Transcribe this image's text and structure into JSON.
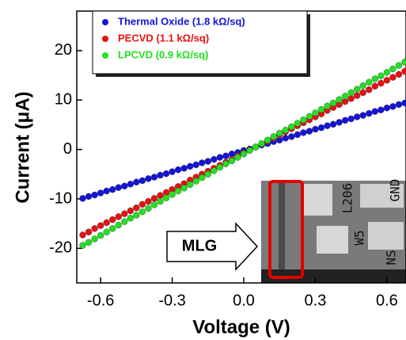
{
  "chart_data": {
    "type": "scatter",
    "xlabel": "Voltage (V)",
    "ylabel": "Current (μA)",
    "xlim": [
      -0.7,
      0.68
    ],
    "ylim": [
      -27,
      28
    ],
    "xticks": [
      -0.6,
      -0.3,
      {
        "value": 0,
        "label": "0.0"
      },
      0.3,
      0.6
    ],
    "yticks": [
      -20,
      -10,
      0,
      10,
      20
    ],
    "legend": "upper left",
    "x": [
      -0.675,
      -0.65,
      -0.625,
      -0.6,
      -0.575,
      -0.55,
      -0.525,
      -0.5,
      -0.475,
      -0.45,
      -0.425,
      -0.4,
      -0.375,
      -0.35,
      -0.325,
      -0.3,
      -0.275,
      -0.25,
      -0.225,
      -0.2,
      -0.175,
      -0.15,
      -0.125,
      -0.1,
      -0.075,
      -0.05,
      -0.025,
      0,
      0.025,
      0.05,
      0.075,
      0.1,
      0.125,
      0.15,
      0.175,
      0.2,
      0.225,
      0.25,
      0.275,
      0.3,
      0.325,
      0.35,
      0.375,
      0.4,
      0.425,
      0.45,
      0.475,
      0.5,
      0.525,
      0.55,
      0.575,
      0.6,
      0.625,
      0.65,
      0.675
    ],
    "series": [
      {
        "name": "Thermal Oxide (1.8 kΩ/sq)",
        "color": "#1414d8",
        "values": [
          -9.9,
          -9.5,
          -9.2,
          -8.8,
          -8.4,
          -8.1,
          -7.7,
          -7.4,
          -7.0,
          -6.6,
          -6.3,
          -5.9,
          -5.6,
          -5.2,
          -4.9,
          -4.5,
          -4.1,
          -3.8,
          -3.4,
          -3.1,
          -2.7,
          -2.4,
          -2.0,
          -1.6,
          -1.3,
          -0.9,
          -0.6,
          -0.2,
          0.1,
          0.5,
          0.9,
          1.2,
          1.6,
          1.9,
          2.3,
          2.6,
          3.0,
          3.4,
          3.7,
          4.1,
          4.4,
          4.8,
          5.1,
          5.5,
          5.9,
          6.2,
          6.6,
          6.9,
          7.3,
          7.7,
          8.0,
          8.4,
          8.7,
          9.1,
          9.4
        ]
      },
      {
        "name": "PECVD (1.1 kΩ/sq)",
        "color": "#e81010",
        "values": [
          -17.3,
          -16.7,
          -16.0,
          -15.4,
          -14.8,
          -14.2,
          -13.6,
          -13.0,
          -12.4,
          -11.8,
          -11.1,
          -10.5,
          -9.9,
          -9.3,
          -8.7,
          -8.1,
          -7.5,
          -6.9,
          -6.2,
          -5.6,
          -5.0,
          -4.4,
          -3.8,
          -3.2,
          -2.6,
          -2.0,
          -1.3,
          -0.7,
          -0.1,
          0.5,
          1.1,
          1.7,
          2.3,
          3.0,
          3.6,
          4.2,
          4.8,
          5.4,
          6.0,
          6.6,
          7.2,
          7.9,
          8.5,
          9.1,
          9.7,
          10.3,
          10.9,
          11.5,
          12.1,
          12.8,
          13.4,
          14.0,
          14.6,
          15.2,
          15.8
        ]
      },
      {
        "name": "LPCVD (0.9 kΩ/sq)",
        "color": "#22e022",
        "values": [
          -19.4,
          -18.8,
          -18.1,
          -17.4,
          -16.7,
          -16.0,
          -15.3,
          -14.6,
          -13.9,
          -13.3,
          -12.6,
          -11.9,
          -11.2,
          -10.5,
          -9.8,
          -9.1,
          -8.4,
          -7.8,
          -7.1,
          -6.4,
          -5.7,
          -5.0,
          -4.3,
          -3.6,
          -2.9,
          -2.3,
          -1.6,
          -0.9,
          -0.2,
          0.5,
          1.2,
          1.9,
          2.6,
          3.3,
          3.9,
          4.6,
          5.3,
          6.0,
          6.7,
          7.4,
          8.1,
          8.8,
          9.4,
          10.1,
          10.8,
          11.5,
          12.2,
          12.9,
          13.6,
          14.3,
          14.9,
          15.6,
          16.3,
          17.0,
          17.7
        ]
      }
    ],
    "annotation": "MLG",
    "inset_labels": [
      "L206",
      "W5",
      "GND",
      "NS"
    ]
  }
}
